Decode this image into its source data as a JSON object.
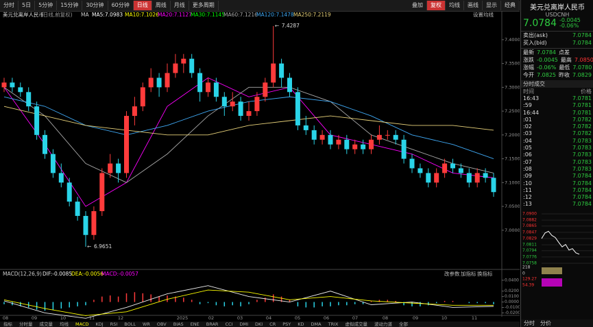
{
  "toolbar": {
    "periods": [
      "分时",
      "5日",
      "5分钟",
      "15分钟",
      "30分钟",
      "60分钟",
      "日线",
      "周线",
      "月线",
      "更多周期"
    ],
    "tools": [
      "叠加",
      "复权",
      "均线",
      "画线",
      "显示",
      "经典"
    ]
  },
  "chart_data": {
    "type": "candlestick",
    "title": "美元兑离岸人民币",
    "subtitle": "(日线,前复权)",
    "ma_setting": "设置均线",
    "ma_legend": [
      {
        "text": "MA",
        "color": "#cccccc"
      },
      {
        "text": "MA5:7.0983",
        "color": "#ffffff"
      },
      {
        "text": "MA10:7.1026",
        "color": "#ffff00"
      },
      {
        "text": "MA20:7.1127",
        "color": "#ff00ff"
      },
      {
        "text": "MA30:7.1145",
        "color": "#00ff00"
      },
      {
        "text": "MA60:7.1216",
        "color": "#aaaaaa"
      },
      {
        "text": "MA120:7.1478",
        "color": "#3fa9f5"
      },
      {
        "text": "MA250:7.2119",
        "color": "#e8d27a"
      }
    ],
    "up_color": "#ff3b3b",
    "down_color": "#2ad4e8",
    "ylim": [
      6.922,
      7.443
    ],
    "yticks": [
      {
        "value": 7.4,
        "label": "7.4000"
      },
      {
        "value": 7.35,
        "label": "7.3500"
      },
      {
        "value": 7.3,
        "label": "7.3000"
      },
      {
        "value": 7.25,
        "label": "7.2500"
      },
      {
        "value": 7.2,
        "label": "7.2000"
      },
      {
        "value": 7.15,
        "label": "7.1500"
      },
      {
        "value": 7.1,
        "label": "7.1000"
      },
      {
        "value": 7.05,
        "label": "7.0500"
      },
      {
        "value": 7.0,
        "label": "7.0000"
      }
    ],
    "categories": [
      "08",
      "09",
      "10",
      "11",
      "12",
      "2025",
      "02",
      "03",
      "04",
      "05",
      "06",
      "07",
      "08",
      "09",
      "10",
      "11"
    ],
    "candles": [
      [
        7.3,
        7.32,
        7.29,
        7.31
      ],
      [
        7.31,
        7.32,
        7.29,
        7.3
      ],
      [
        7.3,
        7.31,
        7.28,
        7.29
      ],
      [
        7.29,
        7.3,
        7.25,
        7.26
      ],
      [
        7.26,
        7.27,
        7.19,
        7.2
      ],
      [
        7.2,
        7.21,
        7.15,
        7.16
      ],
      [
        7.16,
        7.17,
        7.11,
        7.12
      ],
      [
        7.12,
        7.14,
        7.09,
        7.1
      ],
      [
        7.1,
        7.11,
        7.05,
        7.06
      ],
      [
        7.06,
        7.07,
        7.02,
        7.03
      ],
      [
        7.03,
        7.04,
        6.9651,
        6.99
      ],
      [
        6.99,
        7.05,
        6.98,
        7.04
      ],
      [
        7.04,
        7.13,
        7.03,
        7.12
      ],
      [
        7.12,
        7.16,
        7.11,
        7.14
      ],
      [
        7.14,
        7.15,
        7.1,
        7.12
      ],
      [
        7.12,
        7.25,
        7.11,
        7.24
      ],
      [
        7.24,
        7.28,
        7.22,
        7.26
      ],
      [
        7.26,
        7.31,
        7.25,
        7.3
      ],
      [
        7.3,
        7.34,
        7.29,
        7.32
      ],
      [
        7.32,
        7.33,
        7.28,
        7.3
      ],
      [
        7.3,
        7.35,
        7.29,
        7.33
      ],
      [
        7.33,
        7.37,
        7.32,
        7.35
      ],
      [
        7.35,
        7.37,
        7.33,
        7.36
      ],
      [
        7.36,
        7.37,
        7.32,
        7.33
      ],
      [
        7.33,
        7.34,
        7.27,
        7.29
      ],
      [
        7.29,
        7.32,
        7.28,
        7.31
      ],
      [
        7.31,
        7.32,
        7.27,
        7.28
      ],
      [
        7.28,
        7.29,
        7.24,
        7.26
      ],
      [
        7.26,
        7.29,
        7.25,
        7.27
      ],
      [
        7.27,
        7.28,
        7.23,
        7.24
      ],
      [
        7.24,
        7.27,
        7.23,
        7.25
      ],
      [
        7.25,
        7.29,
        7.24,
        7.28
      ],
      [
        7.28,
        7.32,
        7.27,
        7.31
      ],
      [
        7.31,
        7.4287,
        7.3,
        7.35
      ],
      [
        7.35,
        7.36,
        7.3,
        7.32
      ],
      [
        7.32,
        7.33,
        7.28,
        7.29
      ],
      [
        7.29,
        7.3,
        7.21,
        7.22
      ],
      [
        7.22,
        7.24,
        7.2,
        7.21
      ],
      [
        7.21,
        7.22,
        7.18,
        7.19
      ],
      [
        7.19,
        7.21,
        7.18,
        7.2
      ],
      [
        7.2,
        7.21,
        7.17,
        7.18
      ],
      [
        7.18,
        7.2,
        7.17,
        7.19
      ],
      [
        7.19,
        7.2,
        7.16,
        7.17
      ],
      [
        7.17,
        7.19,
        7.16,
        7.18
      ],
      [
        7.18,
        7.19,
        7.16,
        7.17
      ],
      [
        7.17,
        7.2,
        7.16,
        7.19
      ],
      [
        7.19,
        7.22,
        7.18,
        7.2
      ],
      [
        7.2,
        7.21,
        7.19,
        7.2
      ],
      [
        7.2,
        7.21,
        7.18,
        7.19
      ],
      [
        7.19,
        7.2,
        7.14,
        7.15
      ],
      [
        7.15,
        7.16,
        7.12,
        7.13
      ],
      [
        7.13,
        7.14,
        7.11,
        7.12
      ],
      [
        7.12,
        7.13,
        7.09,
        7.1
      ],
      [
        7.1,
        7.13,
        7.09,
        7.12
      ],
      [
        7.12,
        7.15,
        7.11,
        7.14
      ],
      [
        7.14,
        7.15,
        7.12,
        7.13
      ],
      [
        7.13,
        7.14,
        7.11,
        7.12
      ],
      [
        7.12,
        7.13,
        7.09,
        7.1
      ],
      [
        7.1,
        7.13,
        7.09,
        7.12
      ],
      [
        7.12,
        7.13,
        7.1,
        7.11
      ],
      [
        7.11,
        7.12,
        7.07,
        7.08
      ]
    ],
    "ma_x": [
      0,
      5,
      10,
      15,
      20,
      25,
      30,
      35,
      40,
      45,
      50,
      55,
      60
    ],
    "ma_series": [
      {
        "color": "#ff00ff",
        "values": [
          7.3,
          7.18,
          7.05,
          7.1,
          7.26,
          7.32,
          7.28,
          7.3,
          7.2,
          7.18,
          7.16,
          7.12,
          7.11
        ]
      },
      {
        "color": "#aaaaaa",
        "values": [
          7.3,
          7.24,
          7.14,
          7.1,
          7.16,
          7.24,
          7.3,
          7.3,
          7.27,
          7.2,
          7.17,
          7.14,
          7.12
        ]
      },
      {
        "color": "#3fa9f5",
        "values": [
          7.28,
          7.26,
          7.22,
          7.2,
          7.22,
          7.25,
          7.27,
          7.28,
          7.27,
          7.24,
          7.2,
          7.18,
          7.15
        ]
      },
      {
        "color": "#e8d27a",
        "values": [
          7.26,
          7.24,
          7.22,
          7.21,
          7.2,
          7.2,
          7.22,
          7.23,
          7.24,
          7.23,
          7.22,
          7.22,
          7.21
        ]
      }
    ],
    "macd": {
      "title": "MACD(12,26,9)",
      "dif_label": "DIF:-0.0085",
      "dea_label": "DEA:-0.0056",
      "macd_label": "MACD:-0.0057",
      "links": [
        "改参数",
        "加指标",
        "换指标"
      ],
      "ylim": [
        -0.022,
        0.046
      ],
      "yticks": [
        {
          "value": 0.04,
          "label": "0.0400"
        },
        {
          "value": 0.02,
          "label": "0.0200"
        },
        {
          "value": 0.01,
          "label": "0.0100"
        },
        {
          "value": 0,
          "label": "0.0000"
        },
        {
          "value": -0.01,
          "label": "-0.0100"
        },
        {
          "value": -0.02,
          "label": "-0.0200"
        }
      ],
      "hist": [
        -0.004,
        -0.006,
        -0.008,
        -0.01,
        -0.014,
        -0.016,
        -0.015,
        -0.012,
        -0.01,
        -0.008,
        -0.006,
        0.004,
        0.01,
        0.012,
        0.01,
        0.016,
        0.018,
        0.016,
        0.014,
        0.01,
        0.012,
        0.01,
        0.008,
        0.004,
        -0.004,
        -0.002,
        -0.006,
        -0.008,
        -0.006,
        -0.008,
        -0.004,
        0.004,
        0.008,
        0.014,
        0.01,
        0.004,
        -0.008,
        -0.01,
        -0.01,
        -0.008,
        -0.008,
        -0.006,
        -0.006,
        -0.004,
        -0.004,
        0.002,
        0.004,
        0.004,
        0.002,
        -0.006,
        -0.008,
        -0.008,
        -0.006,
        -0.002,
        0.002,
        0.002,
        0,
        -0.002,
        -0.002,
        -0.002,
        -0.004
      ],
      "dif": {
        "color": "#eeeeee",
        "values": [
          0.002,
          -0.02,
          -0.03,
          -0.01,
          0.015,
          0.03,
          0.01,
          0.0,
          0.02,
          -0.005,
          0.0,
          -0.01,
          -0.008
        ]
      },
      "dea": {
        "color": "#ffff00",
        "values": [
          0.004,
          -0.012,
          -0.025,
          -0.018,
          0.005,
          0.022,
          0.018,
          0.004,
          0.01,
          0.002,
          -0.002,
          -0.006,
          -0.006
        ]
      }
    },
    "tabs": [
      "指标",
      "分时量",
      "成交量",
      "均线",
      "MACD",
      "KDJ",
      "RSI",
      "BOLL",
      "WR",
      "OBV",
      "BIAS",
      "ENE",
      "BRAR",
      "CCI",
      "DMI",
      "DKI",
      "CR",
      "PSY",
      "KD",
      "DMA",
      "TRIX",
      "虚拟成交量",
      "波动力道",
      "全部"
    ],
    "active_tab": 4
  },
  "right_panel": {
    "name": "美元兑离岸人民币",
    "code": "USDCNH",
    "price": "7.0784",
    "change": "-0.0045",
    "change_pct": "-0.06%",
    "ask_bid": [
      [
        "卖出(ask)",
        "7.0784"
      ],
      [
        "买入(bid)",
        "7.0784"
      ]
    ],
    "stats": [
      [
        "最新",
        "7.0784",
        "点差",
        ""
      ],
      [
        "涨跌",
        "-0.0045",
        "最高",
        "7.0850"
      ],
      [
        "涨幅",
        "-0.06%",
        "最低",
        "7.0780"
      ],
      [
        "今开",
        "7.0825",
        "昨收",
        "7.0829"
      ]
    ],
    "ticks_title": "分时成交",
    "ticks_header": [
      "时间",
      "价格"
    ],
    "ticks": [
      [
        "16:43",
        "7.0781"
      ],
      [
        ":59",
        "7.0781"
      ],
      [
        "16:44",
        "7.0781"
      ],
      [
        ":01",
        "7.0782"
      ],
      [
        ":02",
        "7.0782"
      ],
      [
        ":03",
        "7.0782"
      ],
      [
        ":04",
        "7.0783"
      ],
      [
        ":05",
        "7.0783"
      ],
      [
        ":06",
        "7.0783"
      ],
      [
        ":07",
        "7.0783"
      ],
      [
        ":08",
        "7.0783"
      ],
      [
        ":09",
        "7.0784"
      ],
      [
        ":10",
        "7.0784"
      ],
      [
        ":11",
        "7.0784"
      ],
      [
        ":12",
        "7.0784"
      ],
      [
        ":13",
        "7.0784"
      ]
    ],
    "mini": {
      "ylim": [
        7.0758,
        7.09
      ],
      "yticks": [
        {
          "value": 7.09,
          "label": "7.0900"
        },
        {
          "value": 7.0882,
          "label": "7.0882"
        },
        {
          "value": 7.0865,
          "label": "7.0865"
        },
        {
          "value": 7.0847,
          "label": "7.0847"
        },
        {
          "value": 7.0829,
          "label": "7.0829"
        },
        {
          "value": 7.0811,
          "label": "7.0811"
        },
        {
          "value": 7.0794,
          "label": "7.0794"
        },
        {
          "value": 7.0776,
          "label": "7.0776"
        },
        {
          "value": 7.0758,
          "label": "7.0758"
        }
      ],
      "values": [
        7.0829,
        7.0845,
        7.085,
        7.0838,
        7.0832,
        7.0818,
        7.0805,
        7.0812,
        7.0796,
        7.08,
        7.0788,
        7.0784
      ],
      "sub_labels": [
        "218",
        "0",
        "129.27",
        "54.39"
      ]
    },
    "bottom_tabs": [
      "分时",
      "分价"
    ]
  }
}
